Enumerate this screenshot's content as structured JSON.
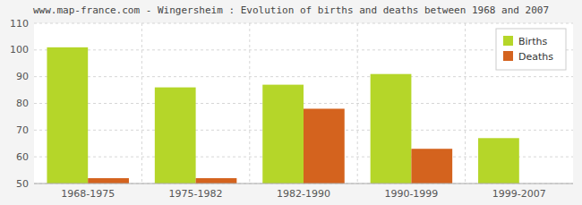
{
  "chart_data": {
    "type": "bar",
    "title": "www.map-france.com - Wingersheim : Evolution of births and deaths between 1968 and 2007",
    "categories": [
      "1968-1975",
      "1975-1982",
      "1982-1990",
      "1990-1999",
      "1999-2007"
    ],
    "series": [
      {
        "name": "Births",
        "color": "#b5d629",
        "values": [
          101,
          86,
          87,
          91,
          67
        ]
      },
      {
        "name": "Deaths",
        "color": "#d4631e",
        "values": [
          52,
          52,
          78,
          63,
          50
        ]
      }
    ],
    "ylim": [
      50,
      110
    ],
    "yticks": [
      50,
      60,
      70,
      80,
      90,
      100,
      110
    ],
    "grid": true,
    "legend": "upper right"
  }
}
